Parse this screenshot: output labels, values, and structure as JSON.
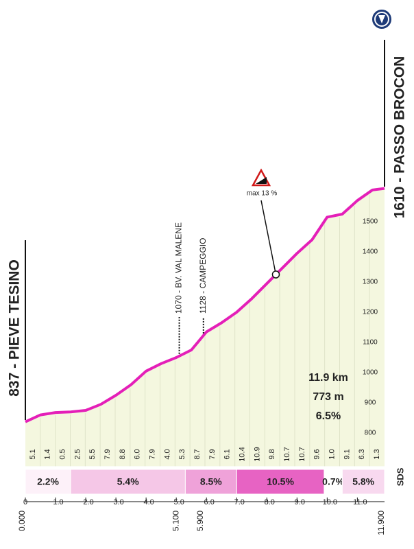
{
  "chart_data": {
    "type": "area",
    "start_label": "837 - PIEVE TESINO",
    "end_label": "1610 - PASSO BROCON",
    "x": [
      0,
      0.5,
      1,
      1.5,
      2,
      2.5,
      3,
      3.5,
      4,
      4.5,
      5,
      5.5,
      6,
      6.5,
      7,
      7.5,
      8,
      8.5,
      9,
      9.5,
      10,
      10.5,
      11,
      11.5,
      11.9
    ],
    "values": [
      837,
      860,
      868,
      870,
      875,
      895,
      925,
      960,
      1005,
      1030,
      1050,
      1075,
      1135,
      1165,
      1200,
      1245,
      1295,
      1345,
      1395,
      1440,
      1515,
      1525,
      1570,
      1605,
      1610
    ],
    "color": "#e41fb8",
    "fill": "#f4f7df",
    "xlim": [
      0,
      11.9
    ],
    "ylim": [
      690,
      1700
    ],
    "yticks": [
      800,
      900,
      1000,
      1100,
      1200,
      1300,
      1400,
      1500
    ],
    "xticks": [
      0,
      {
        "value": 1,
        "label": "1.0"
      },
      {
        "value": 2,
        "label": "2.0"
      },
      {
        "value": 3,
        "label": "3.0"
      },
      {
        "value": 4,
        "label": "4.0"
      },
      {
        "value": 5,
        "label": "5.0"
      },
      {
        "value": 6,
        "label": "6.0"
      },
      {
        "value": 7,
        "label": "7.0"
      },
      {
        "value": 8,
        "label": "8.0"
      },
      {
        "value": 9,
        "label": "9.0"
      },
      {
        "value": 10,
        "label": "10.0"
      },
      {
        "value": 11,
        "label": "11.0"
      }
    ],
    "distance_markers": [
      {
        "value": 0,
        "label": "0.000"
      },
      {
        "value": 5.1,
        "label": "5.100"
      },
      {
        "value": 5.9,
        "label": "5.900"
      },
      {
        "value": 11.9,
        "label": "11.900"
      }
    ],
    "segment_gradients": [
      "5.1",
      "1.4",
      "0.5",
      "2.5",
      "5.5",
      "7.9",
      "8.8",
      "6.0",
      "7.9",
      "4.0",
      "5.3",
      "8.7",
      "7.9",
      "6.1",
      "10.4",
      "10.9",
      "9.8",
      "10.7",
      "10.7",
      "9.6",
      "1.0",
      "9.1",
      "6.3",
      "1.3"
    ],
    "gradient_bands": [
      {
        "start": 0,
        "end": 1.5,
        "label": "2.2%",
        "color": "#fdf1f9"
      },
      {
        "start": 1.5,
        "end": 5.3,
        "label": "5.4%",
        "color": "#f5c7e7"
      },
      {
        "start": 5.3,
        "end": 7.0,
        "label": "8.5%",
        "color": "#efa2d9"
      },
      {
        "start": 7.0,
        "end": 9.9,
        "label": "10.5%",
        "color": "#e763c3"
      },
      {
        "start": 9.9,
        "end": 10.5,
        "label": "0.7%",
        "color": "#ffffff"
      },
      {
        "start": 10.5,
        "end": 11.9,
        "label": "5.8%",
        "color": "#f8d9ef"
      }
    ],
    "landmarks": [
      {
        "x": 5.1,
        "label": "1070 - BV. VAL MALENE"
      },
      {
        "x": 5.9,
        "label": "1128 - CAMPEGGIO"
      }
    ],
    "max_gradient": {
      "x": 8.3,
      "label": "max 13 %"
    },
    "summary": [
      "11.9 km",
      "773 m",
      "6.5%"
    ],
    "logo": "SDS"
  }
}
